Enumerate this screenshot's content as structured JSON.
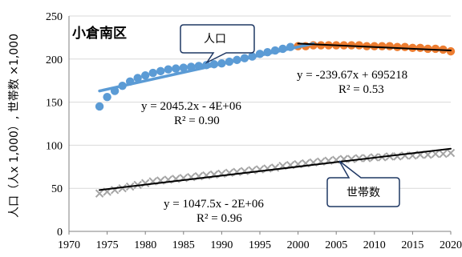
{
  "chart_data": {
    "type": "scatter",
    "title": "小倉南区",
    "xlabel": "",
    "ylabel": "人口（人x 1,000）, 世帯数 ×1,000",
    "xlim": [
      1970,
      2020
    ],
    "ylim": [
      0,
      250
    ],
    "x_ticks": [
      1970,
      1975,
      1980,
      1985,
      1990,
      1995,
      2000,
      2005,
      2010,
      2015,
      2020
    ],
    "y_ticks": [
      0,
      50,
      100,
      150,
      200,
      250
    ],
    "x_tick_labels": [
      "1970",
      "1975",
      "1980",
      "1985",
      "1990",
      "1995",
      "2000",
      "2005",
      "2010",
      "2015",
      "2020"
    ],
    "y_tick_labels": [
      "0",
      "50",
      "100",
      "150",
      "200",
      "250"
    ],
    "grid": "horizontal",
    "series": [
      {
        "name": "人口",
        "marker": "circle",
        "color": "#5B9BD5",
        "x": [
          1974,
          1975,
          1976,
          1977,
          1978,
          1979,
          1980,
          1981,
          1982,
          1983,
          1984,
          1985,
          1986,
          1987,
          1988,
          1989,
          1990,
          1991,
          1992,
          1993,
          1994,
          1995,
          1996,
          1997,
          1998,
          1999
        ],
        "values": [
          145,
          156,
          163,
          169,
          174,
          178,
          181,
          184,
          186,
          188,
          189,
          190,
          191,
          192,
          193,
          194,
          195,
          197,
          199,
          201,
          203,
          206,
          208,
          210,
          212,
          214
        ]
      },
      {
        "name": "",
        "marker": "circle",
        "color": "#ED7D31",
        "x": [
          2000,
          2001,
          2002,
          2003,
          2004,
          2005,
          2006,
          2007,
          2008,
          2009,
          2010,
          2011,
          2012,
          2013,
          2014,
          2015,
          2016,
          2017,
          2018,
          2019,
          2020
        ],
        "values": [
          215,
          215,
          216,
          216,
          216,
          216,
          216,
          216,
          216,
          215,
          215,
          215,
          215,
          214,
          214,
          213,
          213,
          212,
          212,
          211,
          209
        ]
      },
      {
        "name": "世帯数",
        "marker": "x",
        "color": "#A5A5A5",
        "x": [
          1974,
          1975,
          1976,
          1977,
          1978,
          1979,
          1980,
          1981,
          1982,
          1983,
          1984,
          1985,
          1986,
          1987,
          1988,
          1989,
          1990,
          1991,
          1992,
          1993,
          1994,
          1995,
          1996,
          1997,
          1998,
          1999,
          2000,
          2001,
          2002,
          2003,
          2004,
          2005,
          2006,
          2007,
          2008,
          2009,
          2010,
          2011,
          2012,
          2013,
          2014,
          2015,
          2016,
          2017,
          2018,
          2019,
          2020
        ],
        "values": [
          44,
          46,
          48,
          50,
          52,
          54,
          56,
          58,
          59,
          60,
          61,
          62,
          63,
          64,
          65,
          66,
          67,
          68,
          69,
          70,
          71,
          72,
          73,
          74,
          76,
          77,
          78,
          79,
          80,
          81,
          82,
          83,
          84,
          84,
          85,
          85,
          86,
          86,
          87,
          87,
          88,
          88,
          89,
          89,
          90,
          90,
          91
        ]
      }
    ],
    "trendlines": [
      {
        "series": "人口",
        "color": "#5B9BD5",
        "x_range": [
          1974,
          2002
        ],
        "y_range": [
          163,
          218
        ],
        "equation": "y = 2045.2x - 4E+06",
        "r2": "R² = 0.90"
      },
      {
        "series": "",
        "color": "#000000",
        "x_range": [
          2000,
          2020
        ],
        "y_range": [
          218,
          210
        ],
        "equation": "y = -239.67x + 695218",
        "r2": "R² = 0.53"
      },
      {
        "series": "世帯数",
        "color": "#000000",
        "x_range": [
          1974,
          2020
        ],
        "y_range": [
          48,
          96
        ],
        "equation": "y = 1047.5x - 2E+06",
        "r2": "R² = 0.96"
      }
    ],
    "callouts": [
      {
        "label": "人口",
        "points_to_series": "人口"
      },
      {
        "label": "世帯数",
        "points_to_series": "世帯数"
      }
    ]
  }
}
